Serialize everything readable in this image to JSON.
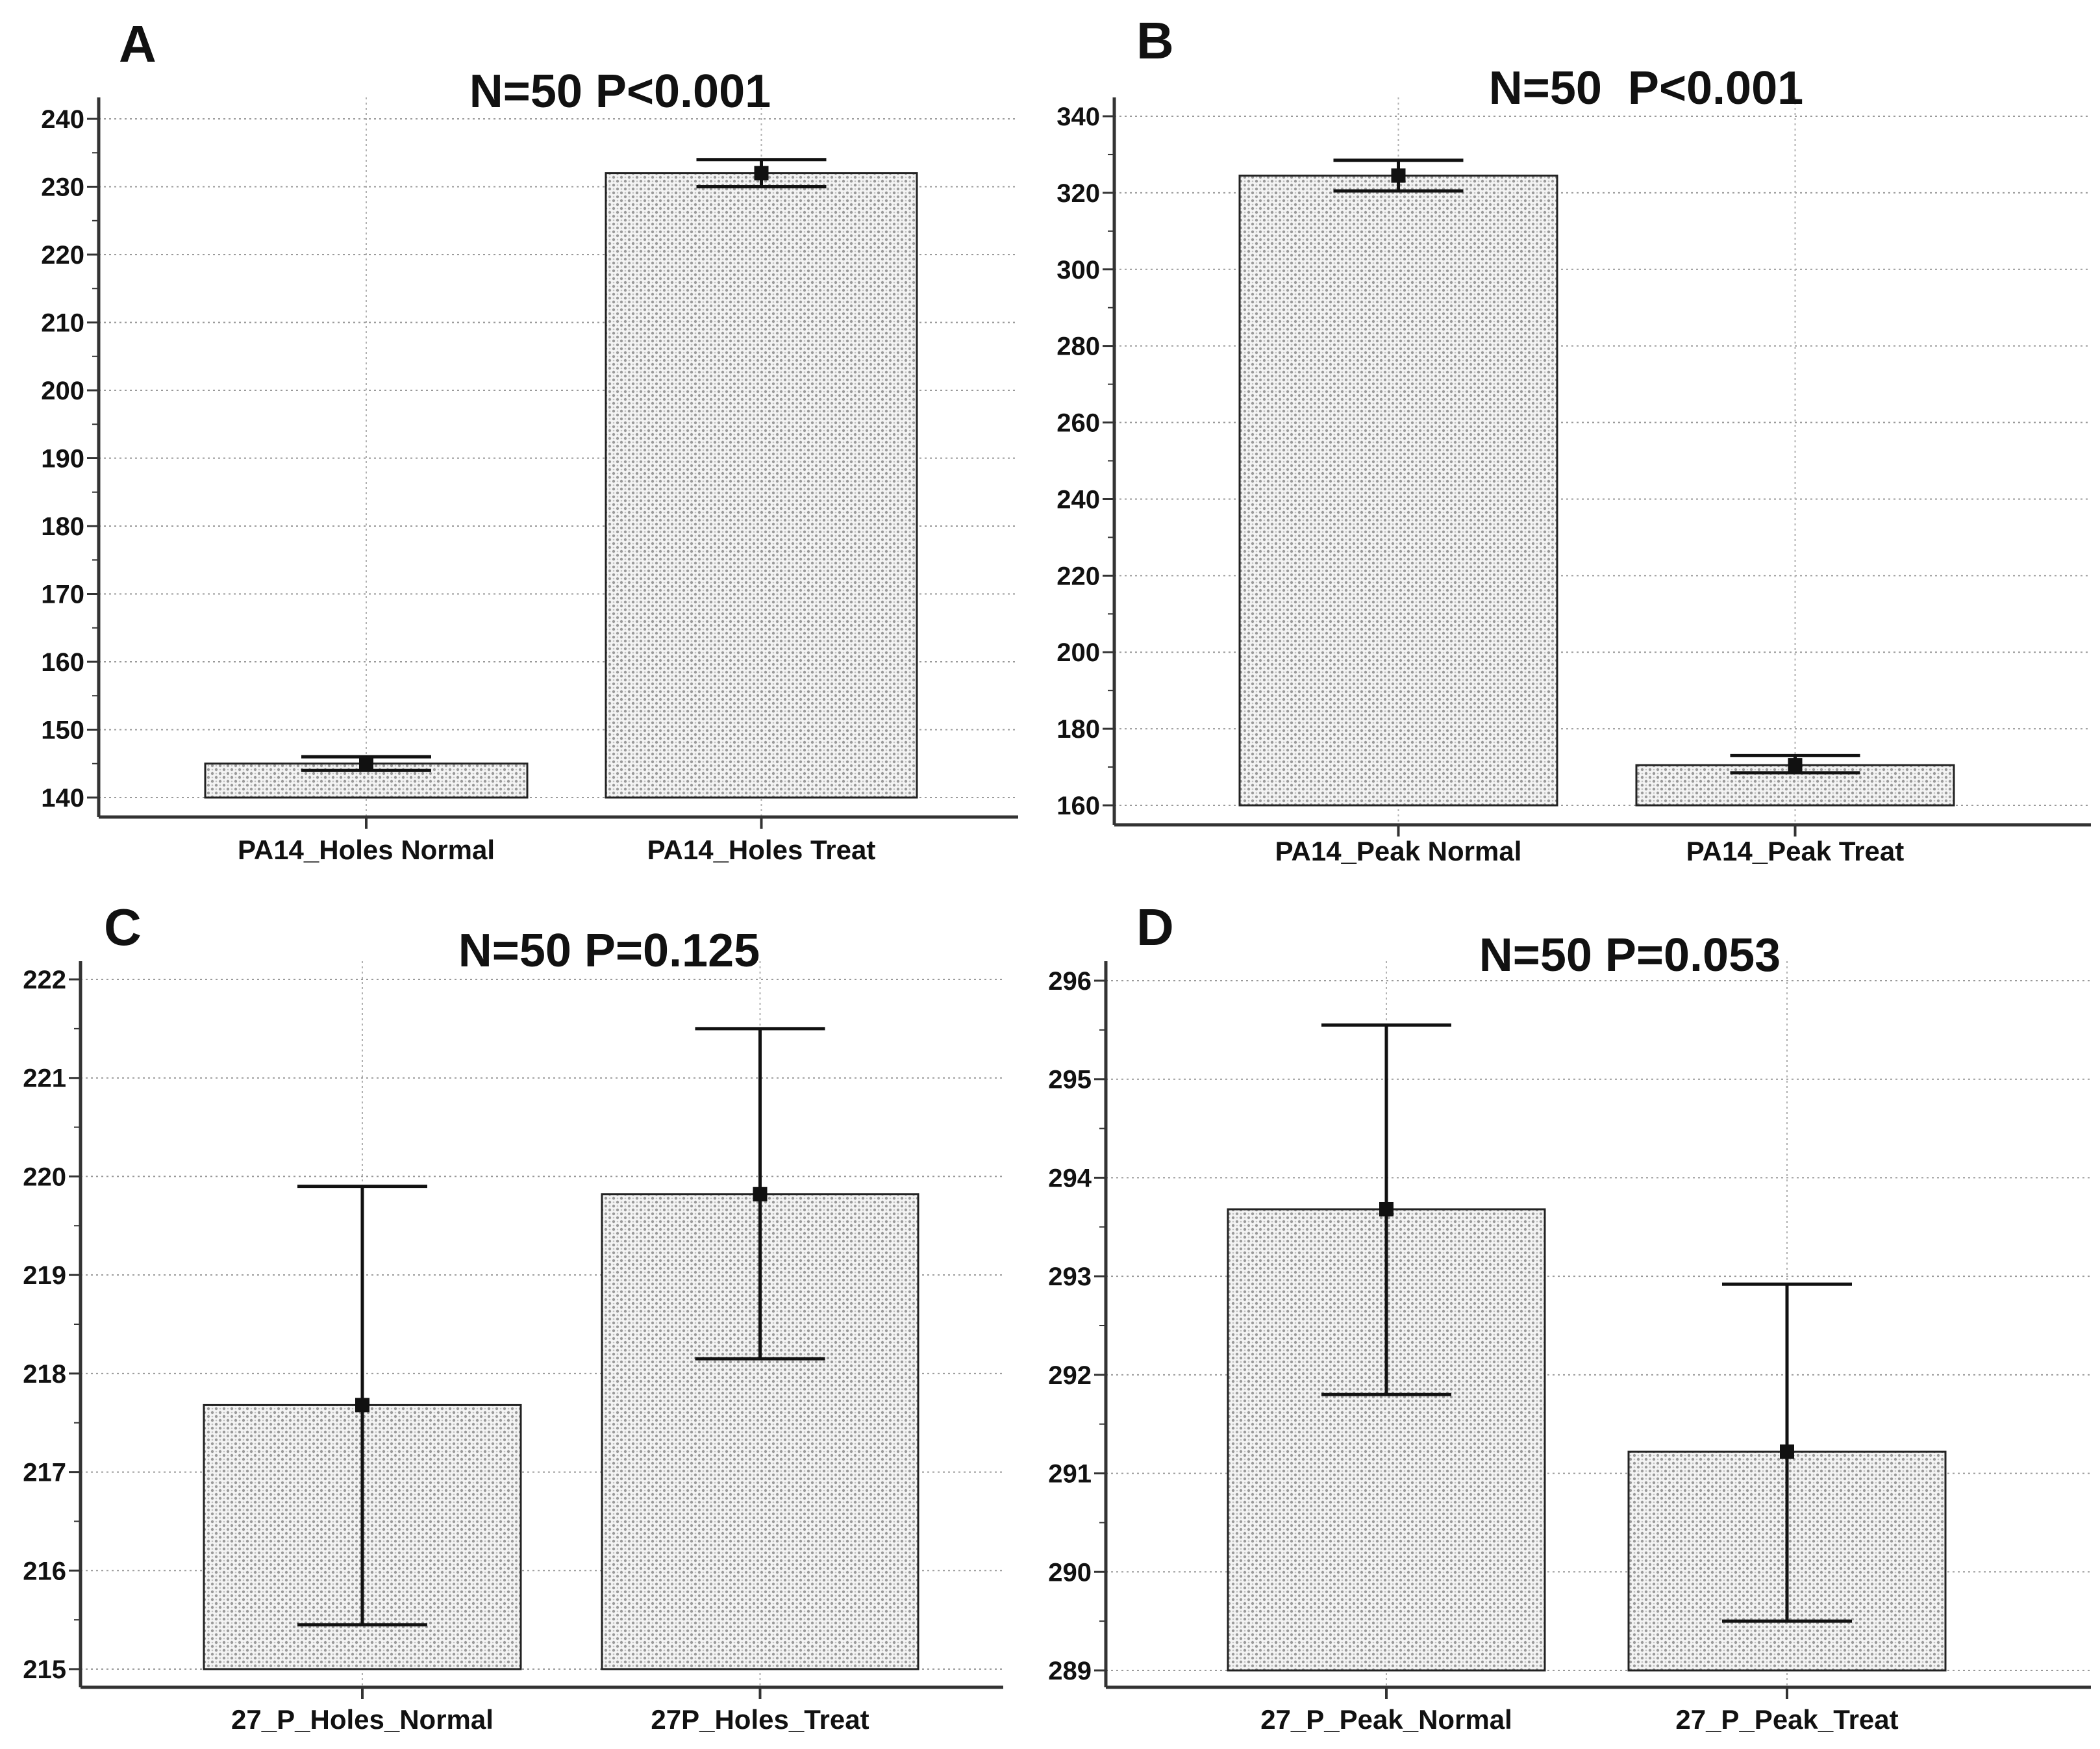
{
  "chart_data": [
    {
      "panel": "A",
      "type": "bar",
      "title": "N=50 P<0.001",
      "categories": [
        "PA14_Holes Normal",
        "PA14_Holes Treat"
      ],
      "values": [
        145,
        232
      ],
      "error_low": [
        144,
        230
      ],
      "error_high": [
        146,
        234
      ],
      "ylim": [
        140,
        240
      ],
      "yticks": [
        140,
        150,
        160,
        170,
        180,
        190,
        200,
        210,
        220,
        230,
        240
      ],
      "xlabel": "",
      "ylabel": "",
      "grid": true
    },
    {
      "panel": "B",
      "type": "bar",
      "title": "N=50  P<0.001",
      "categories": [
        "PA14_Peak Normal",
        "PA14_Peak Treat"
      ],
      "values": [
        324.5,
        170.5
      ],
      "error_low": [
        320.5,
        168.5
      ],
      "error_high": [
        328.5,
        173
      ],
      "ylim": [
        160,
        340
      ],
      "yticks": [
        160,
        180,
        200,
        220,
        240,
        260,
        280,
        300,
        320,
        340
      ],
      "xlabel": "",
      "ylabel": "",
      "grid": true
    },
    {
      "panel": "C",
      "type": "bar",
      "title": "N=50 P=0.125",
      "categories": [
        "27_P_Holes_Normal",
        "27P_Holes_Treat"
      ],
      "values": [
        217.68,
        219.82
      ],
      "error_low": [
        215.45,
        218.15
      ],
      "error_high": [
        219.9,
        221.5
      ],
      "ylim": [
        215,
        222
      ],
      "yticks": [
        215,
        216,
        217,
        218,
        219,
        220,
        221,
        222
      ],
      "xlabel": "",
      "ylabel": "",
      "grid": true
    },
    {
      "panel": "D",
      "type": "bar",
      "title": "N=50 P=0.053",
      "categories": [
        "27_P_Peak_Normal",
        "27_P_Peak_Treat"
      ],
      "values": [
        293.68,
        291.22
      ],
      "error_low": [
        291.8,
        289.5
      ],
      "error_high": [
        295.55,
        292.92
      ],
      "ylim": [
        289,
        296
      ],
      "yticks": [
        289,
        290,
        291,
        292,
        293,
        294,
        295,
        296
      ],
      "xlabel": "",
      "ylabel": "",
      "grid": true
    }
  ]
}
